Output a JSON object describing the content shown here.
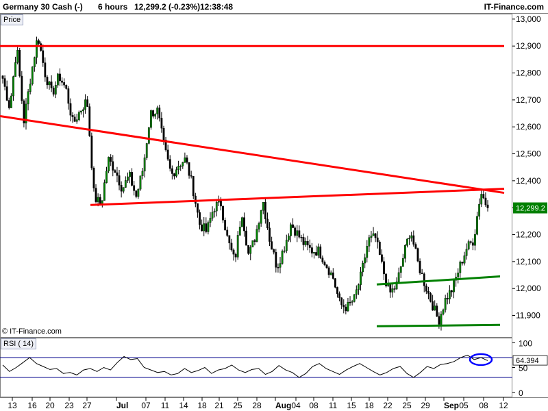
{
  "header": {
    "instrument": "Germany 30 Cash (-)",
    "interval": "6 hours",
    "price_change": "12,299.2 (-0.23%)",
    "time": "12:38:48",
    "brand": "IT-Finance.com"
  },
  "price_panel": {
    "label": "Price",
    "copyright": "© IT-Finance.com"
  },
  "rsi_panel": {
    "label": "RSI ( 14)"
  },
  "colors": {
    "up_candle": "#008000",
    "down_candle": "#000000",
    "resistance": "#ff0000",
    "support": "#008000",
    "rsi_bands": "#00008b",
    "highlight": "#0000ff",
    "last_price_box": "#008000"
  },
  "chart_data": [
    {
      "type": "candlestick",
      "title": "Germany 30 Cash (-)",
      "interval": "6 hours",
      "y_ticks": [
        "11,900",
        "12,000",
        "12,100",
        "12,200",
        "12,300",
        "12,400",
        "12,500",
        "12,600",
        "12,700",
        "12,800",
        "12,900",
        "13,000"
      ],
      "y_tick_values": [
        11900,
        12000,
        12100,
        12200,
        12300,
        12400,
        12500,
        12600,
        12700,
        12800,
        12900,
        13000
      ],
      "ylim": [
        11820,
        13020
      ],
      "x_ticks": [
        "13",
        "16",
        "20",
        "23",
        "27",
        "Jul",
        "07",
        "11",
        "14",
        "18",
        "21",
        "25",
        "28",
        "Aug",
        "04",
        "08",
        "11",
        "15",
        "18",
        "22",
        "25",
        "29",
        "Sep",
        "05",
        "08",
        "12"
      ],
      "x_tick_major": [
        "Jul",
        "Aug",
        "Sep"
      ],
      "last_price": "12,299.2",
      "last_value": 12299.2,
      "close_path": [
        12780,
        12670,
        12900,
        12620,
        12790,
        12940,
        12800,
        12720,
        12790,
        12740,
        12610,
        12660,
        12700,
        12340,
        12310,
        12480,
        12440,
        12370,
        12420,
        12340,
        12450,
        12650,
        12660,
        12520,
        12420,
        12460,
        12480,
        12380,
        12240,
        12210,
        12300,
        12320,
        12180,
        12100,
        12290,
        12120,
        12200,
        12330,
        12180,
        12080,
        12150,
        12240,
        12200,
        12160,
        12140,
        12140,
        12090,
        12040,
        11940,
        11930,
        11960,
        12050,
        12180,
        12190,
        12080,
        11980,
        12010,
        12120,
        12220,
        12100,
        12020,
        11950,
        11880,
        11960,
        12000,
        12080,
        12150,
        12180,
        12360,
        12299
      ],
      "trendlines": [
        {
          "name": "upper resistance",
          "color": "red",
          "from": [
            "13",
            12900
          ],
          "to": [
            "12",
            12900
          ]
        },
        {
          "name": "descending resistance",
          "color": "red",
          "from": [
            "13",
            12640
          ],
          "to": [
            "12",
            12355
          ]
        },
        {
          "name": "ascending resistance",
          "color": "red",
          "from": [
            "23",
            12310
          ],
          "to": [
            "12",
            12370
          ]
        },
        {
          "name": "rising support",
          "color": "green",
          "from": [
            "18",
            12015
          ],
          "to": [
            "08",
            12045
          ]
        },
        {
          "name": "horizontal support",
          "color": "green",
          "from": [
            "18",
            11860
          ],
          "to": [
            "08",
            11865
          ]
        }
      ]
    },
    {
      "type": "line",
      "title": "RSI ( 14)",
      "y_ticks": [
        "0",
        "50",
        "100"
      ],
      "y_tick_values": [
        0,
        50,
        100
      ],
      "ylim": [
        -10,
        110
      ],
      "bands": [
        30,
        70
      ],
      "last_value": 64.394,
      "last_label": "64.394",
      "values": [
        55,
        42,
        50,
        60,
        70,
        58,
        52,
        46,
        48,
        38,
        40,
        35,
        45,
        48,
        42,
        50,
        45,
        60,
        72,
        66,
        68,
        50,
        45,
        40,
        42,
        35,
        38,
        48,
        40,
        44,
        50,
        38,
        45,
        48,
        55,
        45,
        40,
        46,
        48,
        36,
        42,
        54,
        45,
        40,
        30,
        38,
        52,
        58,
        48,
        42,
        36,
        45,
        52,
        58,
        50,
        42,
        35,
        40,
        48,
        52,
        38,
        30,
        40,
        52,
        48,
        56,
        58,
        62,
        70,
        75,
        66,
        70,
        64
      ]
    }
  ]
}
